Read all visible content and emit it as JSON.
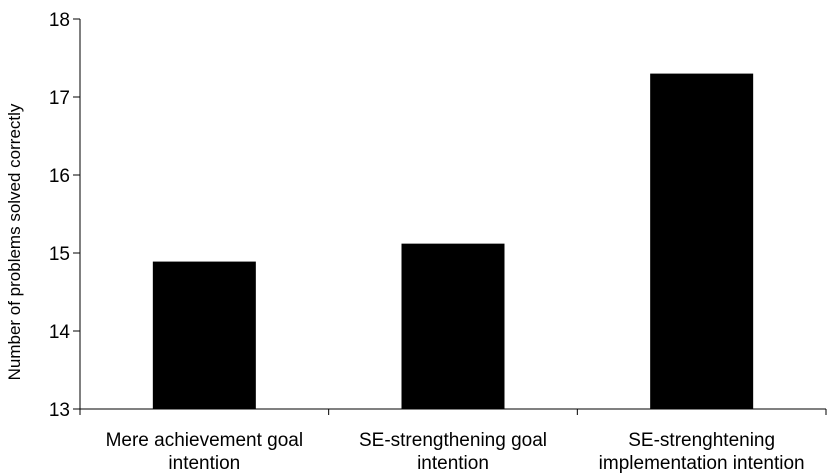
{
  "chart_data": {
    "type": "bar",
    "title": "",
    "xlabel": "",
    "ylabel": "Number of problems solved correctly",
    "ylim": [
      13,
      18
    ],
    "yticks": [
      13,
      14,
      15,
      16,
      17,
      18
    ],
    "grid": false,
    "categories": [
      [
        "Mere achievement goal",
        "intention"
      ],
      [
        "SE-strengthening goal",
        "intention"
      ],
      [
        "SE-strenghtening",
        "implementation intention"
      ]
    ],
    "values": [
      14.89,
      15.12,
      17.3
    ],
    "bar_color": "#000000"
  }
}
